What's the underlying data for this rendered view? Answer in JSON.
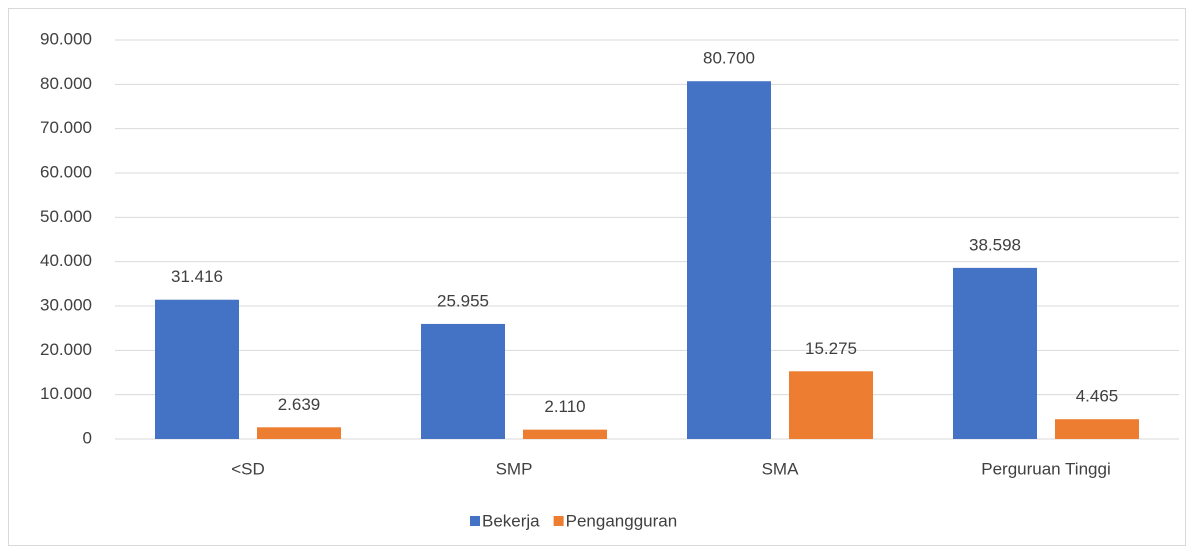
{
  "chart_data": {
    "type": "bar",
    "categories": [
      "<SD",
      "SMP",
      "SMA",
      "Perguruan Tinggi"
    ],
    "series": [
      {
        "name": "Bekerja",
        "color": "#4472c4",
        "values": [
          31416,
          25955,
          80700,
          38598
        ],
        "value_labels": [
          "31.416",
          "25.955",
          "80.700",
          "38.598"
        ]
      },
      {
        "name": "Pengangguran",
        "color": "#ed7d31",
        "values": [
          2639,
          2110,
          15275,
          4465
        ],
        "value_labels": [
          "2.639",
          "2.110",
          "15.275",
          "4.465"
        ]
      }
    ],
    "ylim": [
      0,
      90000
    ],
    "yticks": [
      0,
      {
        "value": 10000,
        "label": "10.000"
      },
      {
        "value": 20000,
        "label": "20.000"
      },
      {
        "value": 30000,
        "label": "30.000"
      },
      {
        "value": 40000,
        "label": "40.000"
      },
      {
        "value": 50000,
        "label": "50.000"
      },
      {
        "value": 60000,
        "label": "60.000"
      },
      {
        "value": 70000,
        "label": "70.000"
      },
      {
        "value": 80000,
        "label": "80.000"
      },
      {
        "value": 90000,
        "label": "90.000"
      }
    ],
    "grid": true,
    "legend": "bottom"
  }
}
